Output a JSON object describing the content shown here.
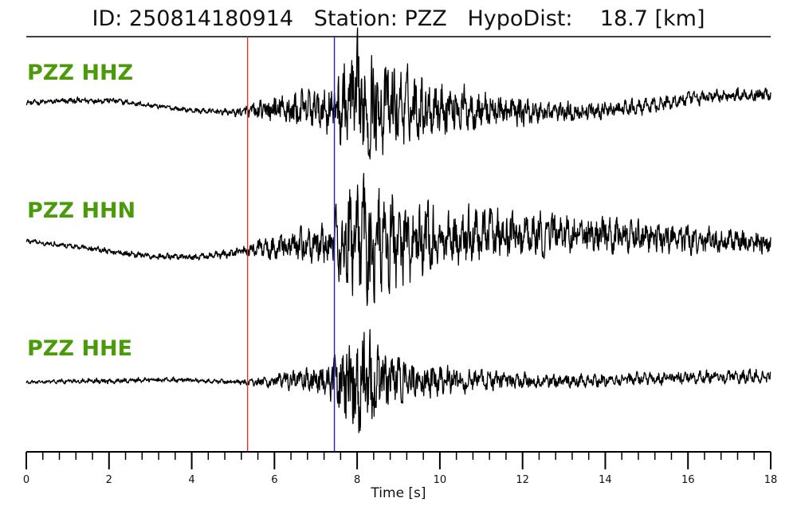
{
  "title": "ID: 250814180914   Station: PZZ   HypoDist:    18.7 [km]",
  "colors": {
    "trace": "#000000",
    "p_pick": "#e8302a",
    "s_pick": "#1f1fd0",
    "channel_label": "#4a9a0a"
  },
  "chart_data": {
    "type": "line",
    "xlabel": "Time [s]",
    "xlim": [
      0,
      18
    ],
    "x_ticks": [
      "0",
      "2",
      "4",
      "6",
      "8",
      "10",
      "12",
      "14",
      "16",
      "18"
    ],
    "minor_tick_step": 0.4,
    "picks": [
      {
        "phase": "P",
        "time": 5.35,
        "color": "#e8302a"
      },
      {
        "phase": "S",
        "time": 7.45,
        "color": "#1f1fd0"
      }
    ],
    "grid": false,
    "series": [
      {
        "name": "PZZ HHZ",
        "x": [
          0,
          1,
          2,
          3,
          4,
          5,
          5.35,
          6,
          7,
          7.45,
          7.8,
          8,
          8.2,
          8.5,
          9,
          9.5,
          10,
          11,
          12,
          13,
          14,
          15,
          16,
          17,
          18
        ],
        "envelope": [
          0.04,
          0.05,
          0.05,
          0.04,
          0.04,
          0.06,
          0.1,
          0.25,
          0.35,
          0.45,
          0.85,
          1.0,
          0.95,
          0.75,
          0.6,
          0.5,
          0.42,
          0.3,
          0.22,
          0.17,
          0.13,
          0.12,
          0.11,
          0.1,
          0.1
        ],
        "baseline": [
          0.0,
          0.03,
          0.04,
          -0.04,
          -0.12,
          -0.15,
          -0.14,
          -0.12,
          -0.1,
          -0.08,
          -0.05,
          -0.04,
          -0.05,
          -0.06,
          -0.06,
          -0.06,
          -0.06,
          -0.1,
          -0.14,
          -0.14,
          -0.12,
          -0.06,
          0.06,
          0.12,
          0.14
        ]
      },
      {
        "name": "PZZ HHN",
        "x": [
          0,
          1,
          2,
          3,
          4,
          5,
          5.35,
          6,
          7,
          7.45,
          7.8,
          8,
          8.2,
          8.5,
          9,
          9.5,
          10,
          11,
          12,
          13,
          14,
          15,
          16,
          17,
          18
        ],
        "envelope": [
          0.04,
          0.04,
          0.05,
          0.05,
          0.05,
          0.07,
          0.1,
          0.2,
          0.3,
          0.45,
          0.8,
          0.9,
          0.95,
          0.85,
          0.7,
          0.6,
          0.5,
          0.42,
          0.35,
          0.32,
          0.28,
          0.25,
          0.22,
          0.2,
          0.18
        ],
        "baseline": [
          0.12,
          0.05,
          -0.04,
          -0.12,
          -0.14,
          -0.08,
          -0.02,
          0.02,
          0.05,
          0.08,
          0.1,
          0.1,
          0.1,
          0.1,
          0.12,
          0.14,
          0.16,
          0.2,
          0.22,
          0.24,
          0.22,
          0.18,
          0.14,
          0.12,
          0.1
        ]
      },
      {
        "name": "PZZ HHE",
        "x": [
          0,
          1,
          2,
          3,
          4,
          5,
          5.35,
          6,
          7,
          7.45,
          7.8,
          8,
          8.2,
          8.5,
          9,
          9.5,
          10,
          11,
          12,
          13,
          14,
          15,
          16,
          17,
          18
        ],
        "envelope": [
          0.03,
          0.04,
          0.05,
          0.04,
          0.04,
          0.04,
          0.06,
          0.12,
          0.22,
          0.35,
          0.8,
          1.0,
          0.9,
          0.6,
          0.4,
          0.3,
          0.25,
          0.18,
          0.14,
          0.12,
          0.11,
          0.11,
          0.11,
          0.11,
          0.11
        ],
        "baseline": [
          0.0,
          0.02,
          0.02,
          0.05,
          0.04,
          0.01,
          0.0,
          0.02,
          0.04,
          0.04,
          0.02,
          0.0,
          0.0,
          0.0,
          0.02,
          0.04,
          0.04,
          0.03,
          0.02,
          0.02,
          0.04,
          0.06,
          0.08,
          0.1,
          0.1
        ]
      }
    ]
  }
}
